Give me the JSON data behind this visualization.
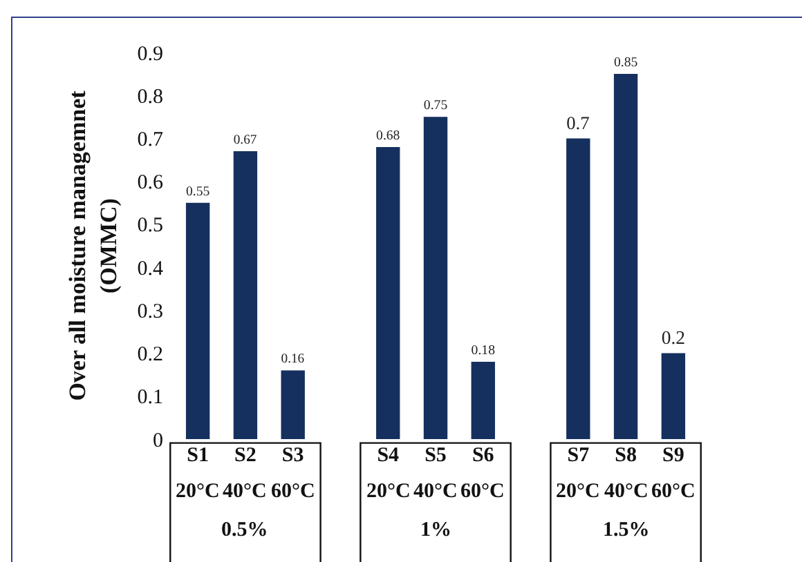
{
  "chart_data": {
    "type": "bar",
    "ylabel": "Over all moisture managemnet (OMMC)",
    "categories": [
      "S1",
      "S2",
      "S3",
      null,
      "S4",
      "S5",
      "S6",
      null,
      "S7",
      "S8",
      "S9"
    ],
    "values": [
      0.55,
      0.67,
      0.16,
      null,
      0.68,
      0.75,
      0.18,
      null,
      0.7,
      0.85,
      0.2
    ],
    "color": "#15305e",
    "data_labels": true,
    "ylim": [
      0,
      0.9
    ],
    "yticks": [
      0,
      0.1,
      0.2,
      0.3,
      0.4,
      0.5,
      0.6,
      0.7,
      0.8,
      0.9
    ],
    "grid": false,
    "legend": false,
    "annotations": [
      "20°C",
      "40°C",
      "60°C",
      "20°C",
      "40°C",
      "60°C",
      "20°C",
      "40°C",
      "60°C",
      "0.5%",
      "1%",
      "1.5%"
    ]
  }
}
